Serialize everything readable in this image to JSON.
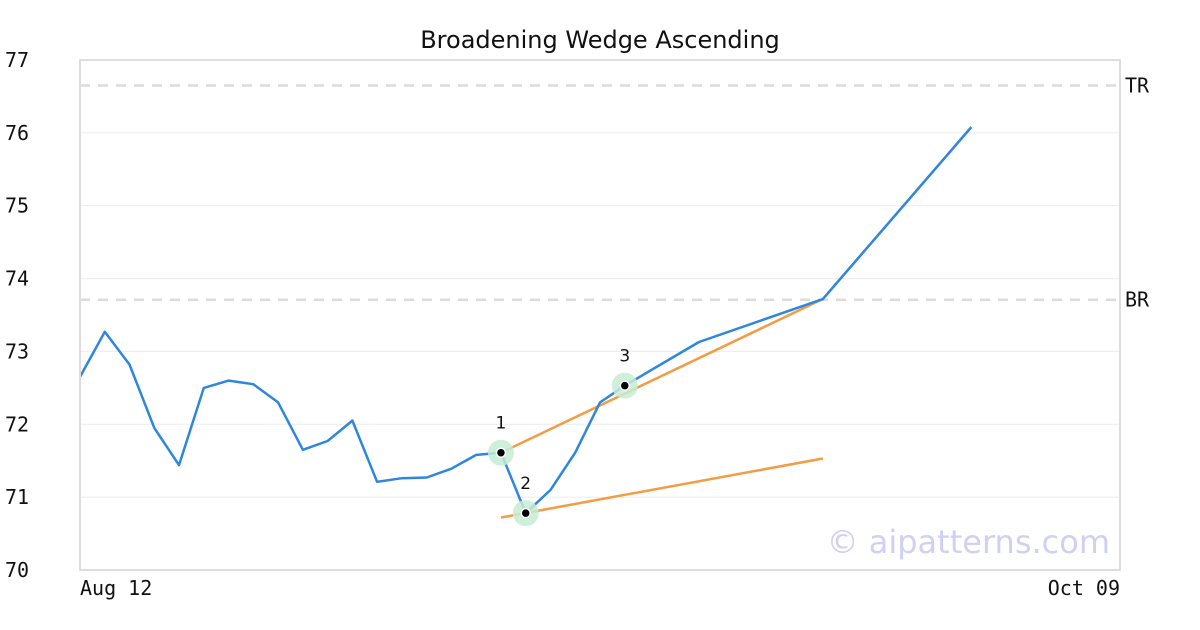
{
  "chart_data": {
    "type": "line",
    "title": "Broadening Wedge Ascending",
    "xlabel": "",
    "ylabel": "",
    "ylim": [
      70,
      77
    ],
    "xlim": [
      0,
      42
    ],
    "y_ticks": [
      70,
      71,
      72,
      73,
      74,
      75,
      76,
      77
    ],
    "x_tick_labels": [
      {
        "x": 0,
        "label": "Aug 12"
      },
      {
        "x": 42,
        "label": "Oct 09"
      }
    ],
    "grid": true,
    "series": [
      {
        "x": [
          0,
          1,
          2,
          3,
          4,
          5,
          6,
          7,
          8,
          9,
          10,
          11,
          12,
          13,
          14,
          15,
          16,
          17,
          18,
          19,
          20,
          21,
          22,
          23,
          24,
          25,
          30,
          36
        ],
        "values": [
          72.65,
          73.27,
          72.82,
          71.95,
          71.44,
          72.5,
          72.6,
          72.55,
          72.3,
          71.65,
          71.77,
          72.05,
          71.21,
          71.26,
          71.27,
          71.39,
          71.58,
          71.61,
          70.78,
          71.1,
          71.61,
          72.3,
          72.53,
          72.73,
          72.93,
          73.13,
          73.72,
          76.08
        ],
        "color": "#2e86de"
      }
    ],
    "trendlines": [
      {
        "x": [
          17,
          30
        ],
        "values": [
          71.61,
          73.72
        ],
        "color": "#f39c44"
      },
      {
        "x": [
          17,
          30
        ],
        "values": [
          70.72,
          71.53
        ],
        "color": "#f39c44"
      }
    ],
    "reference_lines": [
      {
        "label": "TR",
        "value": 76.65
      },
      {
        "label": "BR",
        "value": 73.71
      }
    ],
    "pivot_points": [
      {
        "label": "1",
        "x": 17,
        "value": 71.61
      },
      {
        "label": "2",
        "x": 18,
        "value": 70.78
      },
      {
        "label": "3",
        "x": 22,
        "value": 72.53
      }
    ],
    "watermark": "© aipatterns.com",
    "colors": {
      "line": "#2e86de",
      "trend": "#f39c44",
      "pivot_halo": "#c6ecd4",
      "reference": "#dcdcdc",
      "watermark": "#d0d0f4"
    }
  }
}
